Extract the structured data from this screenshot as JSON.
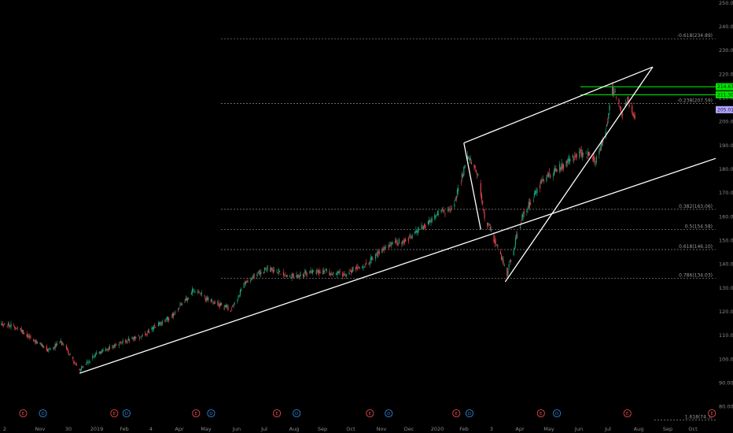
{
  "chart_data": {
    "type": "candlestick",
    "y_axis": {
      "ticks": [
        "250.00",
        "240.00",
        "230.00",
        "220.00",
        "210.00",
        "200.00",
        "190.00",
        "180.00",
        "170.00",
        "160.00",
        "150.00",
        "140.00",
        "130.00",
        "120.00",
        "110.00",
        "100.00",
        "90.00",
        "80.00"
      ],
      "range": [
        77,
        251
      ]
    },
    "x_axis": {
      "ticks": [
        "2",
        "Nov",
        "30",
        "2019",
        "Feb",
        "4",
        "Apr",
        "May",
        "Jun",
        "Jul",
        "Aug",
        "Sep",
        "Oct",
        "Nov",
        "Dec",
        "2020",
        "Feb",
        "3",
        "Apr",
        "May",
        "Jun",
        "Jul",
        "Aug",
        "Sep",
        "Oct"
      ],
      "range": [
        "2018-10-02",
        "2020-10-31"
      ]
    },
    "price_series_anchors": [
      {
        "date": "2018-10-02",
        "price": 115
      },
      {
        "date": "2018-10-20",
        "price": 113
      },
      {
        "date": "2018-11-05",
        "price": 108
      },
      {
        "date": "2018-11-20",
        "price": 104
      },
      {
        "date": "2018-12-06",
        "price": 107
      },
      {
        "date": "2018-12-24",
        "price": 95
      },
      {
        "date": "2019-01-10",
        "price": 102
      },
      {
        "date": "2019-02-01",
        "price": 106
      },
      {
        "date": "2019-03-01",
        "price": 110
      },
      {
        "date": "2019-04-01",
        "price": 118
      },
      {
        "date": "2019-04-24",
        "price": 129
      },
      {
        "date": "2019-05-13",
        "price": 124
      },
      {
        "date": "2019-06-03",
        "price": 121
      },
      {
        "date": "2019-06-20",
        "price": 133
      },
      {
        "date": "2019-07-12",
        "price": 138
      },
      {
        "date": "2019-08-05",
        "price": 135
      },
      {
        "date": "2019-09-01",
        "price": 137
      },
      {
        "date": "2019-10-01",
        "price": 136
      },
      {
        "date": "2019-10-25",
        "price": 140
      },
      {
        "date": "2019-11-15",
        "price": 147
      },
      {
        "date": "2019-12-10",
        "price": 151
      },
      {
        "date": "2020-01-10",
        "price": 161
      },
      {
        "date": "2020-01-25",
        "price": 163
      },
      {
        "date": "2020-02-10",
        "price": 185
      },
      {
        "date": "2020-02-21",
        "price": 178
      },
      {
        "date": "2020-02-28",
        "price": 160
      },
      {
        "date": "2020-03-12",
        "price": 148
      },
      {
        "date": "2020-03-23",
        "price": 136
      },
      {
        "date": "2020-04-08",
        "price": 160
      },
      {
        "date": "2020-05-01",
        "price": 176
      },
      {
        "date": "2020-05-20",
        "price": 181
      },
      {
        "date": "2020-06-10",
        "price": 187
      },
      {
        "date": "2020-06-27",
        "price": 184
      },
      {
        "date": "2020-07-08",
        "price": 200
      },
      {
        "date": "2020-07-13",
        "price": 214
      },
      {
        "date": "2020-07-24",
        "price": 203
      },
      {
        "date": "2020-07-29",
        "price": 210
      },
      {
        "date": "2020-08-06",
        "price": 202
      }
    ],
    "trendlines": [
      {
        "name": "long-trendline",
        "from": {
          "date": "2018-12-24",
          "price": 94
        },
        "to": {
          "date": "2020-10-31",
          "price": 184.5
        }
      },
      {
        "name": "channel-upper",
        "from": {
          "date": "2020-02-06",
          "price": 191
        },
        "to": {
          "date": "2020-08-25",
          "price": 223
        }
      },
      {
        "name": "channel-lower",
        "from": {
          "date": "2020-03-21",
          "price": 132.5
        },
        "to": {
          "date": "2020-08-25",
          "price": 223
        }
      },
      {
        "name": "channel-upper-left",
        "from": {
          "date": "2020-02-06",
          "price": 191
        },
        "to": {
          "date": "2020-02-24",
          "price": 154.5
        }
      }
    ],
    "fib_levels": [
      {
        "label": "-0.618(234.89)",
        "price": 234.89
      },
      {
        "label": "-0.238(207.59)",
        "price": 207.59
      },
      {
        "label": "0.382(163.06)",
        "price": 163.06
      },
      {
        "label": "0.5(154.58)",
        "price": 154.58
      },
      {
        "label": "0.618(146.10)",
        "price": 146.1
      },
      {
        "label": "0.786(134.03)",
        "price": 134.03
      },
      {
        "label": "1.618(74.3)",
        "price": 74.3
      }
    ],
    "horizontal_levels": [
      {
        "price": 214.67,
        "label": "214.67",
        "color": "#00e600"
      },
      {
        "price": 211.3,
        "label": "211.30",
        "color": "#00e600"
      }
    ],
    "last_price": {
      "price": 205.01,
      "label": "205.01",
      "color": "#b3a6ff"
    },
    "events": [
      {
        "date": "2018-10-25",
        "type": "E",
        "color": "#e04848"
      },
      {
        "date": "2018-11-15",
        "type": "D",
        "color": "#2f7fd6"
      },
      {
        "date": "2019-01-30",
        "type": "E",
        "color": "#e04848"
      },
      {
        "date": "2019-02-12",
        "type": "D",
        "color": "#2f7fd6"
      },
      {
        "date": "2019-04-27",
        "type": "E",
        "color": "#e04848"
      },
      {
        "date": "2019-05-13",
        "type": "D",
        "color": "#2f7fd6"
      },
      {
        "date": "2019-07-22",
        "type": "E",
        "color": "#e04848"
      },
      {
        "date": "2019-08-12",
        "type": "D",
        "color": "#2f7fd6"
      },
      {
        "date": "2019-10-29",
        "type": "E",
        "color": "#e04848"
      },
      {
        "date": "2019-11-18",
        "type": "D",
        "color": "#2f7fd6"
      },
      {
        "date": "2020-01-29",
        "type": "E",
        "color": "#e04848"
      },
      {
        "date": "2020-02-12",
        "type": "D",
        "color": "#2f7fd6"
      },
      {
        "date": "2020-04-28",
        "type": "E",
        "color": "#e04848"
      },
      {
        "date": "2020-05-15",
        "type": "D",
        "color": "#2f7fd6"
      },
      {
        "date": "2020-07-29",
        "type": "E",
        "color": "#e04848"
      },
      {
        "date": "2020-10-27",
        "type": "E",
        "color": "#e04848"
      }
    ],
    "grid": false,
    "colors": {
      "up": "#1fa37a",
      "down": "#e0434b",
      "trendline": "#ffffff",
      "fib": "#8c8c8c",
      "background": "#000000",
      "axis_text": "#8a8a8a"
    }
  }
}
